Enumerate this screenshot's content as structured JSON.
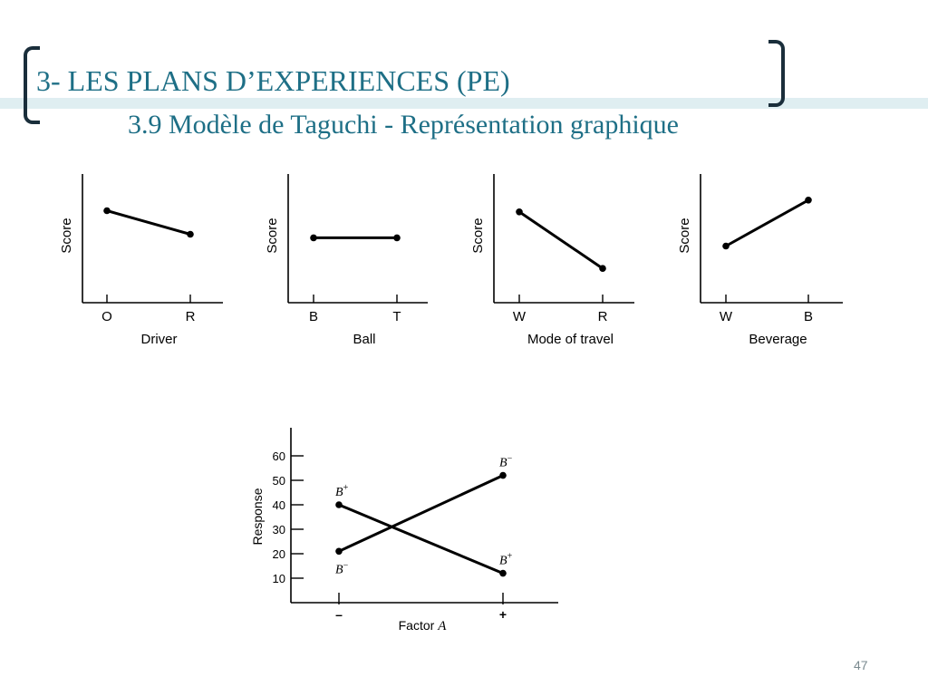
{
  "slide": {
    "title": "3- LES PLANS D’EXPERIENCES (PE)",
    "subtitle": "3.9 Modèle de Taguchi - Représentation graphique",
    "page_number": "47",
    "title_color": "#1e6f86",
    "band_color": "#dfeef1"
  },
  "chart_data": [
    {
      "type": "line",
      "title": "",
      "xlabel": "Driver",
      "ylabel": "Score",
      "categories": [
        "O",
        "R"
      ],
      "values": [
        0.75,
        0.55
      ],
      "ylim": [
        0,
        1
      ],
      "y_ticks_shown": false
    },
    {
      "type": "line",
      "title": "",
      "xlabel": "Ball",
      "ylabel": "Score",
      "categories": [
        "B",
        "T"
      ],
      "values": [
        0.52,
        0.52
      ],
      "ylim": [
        0,
        1
      ],
      "y_ticks_shown": false
    },
    {
      "type": "line",
      "title": "",
      "xlabel": "Mode of travel",
      "ylabel": "Score",
      "categories": [
        "W",
        "R"
      ],
      "values": [
        0.74,
        0.26
      ],
      "ylim": [
        0,
        1
      ],
      "y_ticks_shown": false
    },
    {
      "type": "line",
      "title": "",
      "xlabel": "Beverage",
      "ylabel": "Score",
      "categories": [
        "W",
        "B"
      ],
      "values": [
        0.45,
        0.84
      ],
      "ylim": [
        0,
        1
      ],
      "y_ticks_shown": false
    },
    {
      "type": "line",
      "title": "",
      "xlabel": "Factor A",
      "xlabel_parts": [
        "Factor ",
        "A"
      ],
      "ylabel": "Response",
      "categories": [
        "–",
        "+"
      ],
      "ylim": [
        0,
        65
      ],
      "y_ticks": [
        10,
        20,
        30,
        40,
        50,
        60
      ],
      "grid": false,
      "series": [
        {
          "name": "B+",
          "label_base": "B",
          "label_sup": "+",
          "values": [
            40,
            12
          ]
        },
        {
          "name": "B−",
          "label_base": "B",
          "label_sup": "−",
          "values": [
            21,
            52
          ]
        }
      ]
    }
  ]
}
